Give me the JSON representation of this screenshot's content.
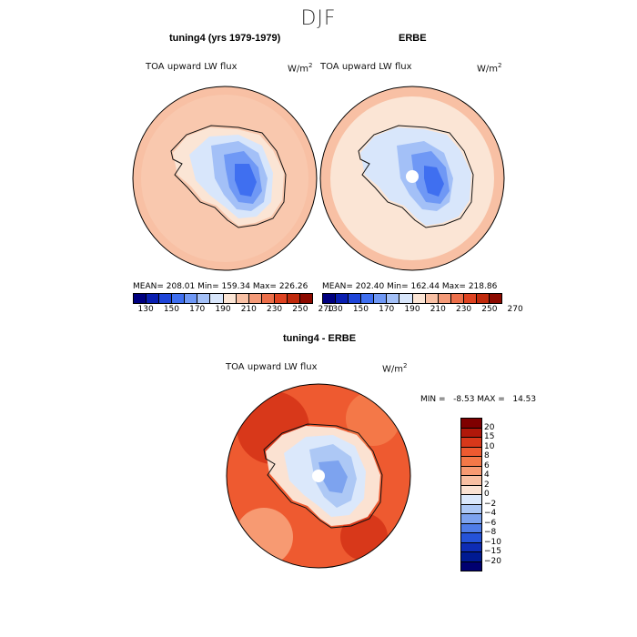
{
  "figure": {
    "title": "DJF"
  },
  "panels": {
    "left": {
      "title": "tuning4 (yrs 1979-1979)",
      "variable": "TOA upward LW flux",
      "units": "W/m",
      "units_exp": "2",
      "stats": "MEAN= 208.01  Min= 159.34  Max= 226.26"
    },
    "right": {
      "title": "ERBE",
      "variable": "TOA upward LW flux",
      "units": "W/m",
      "units_exp": "2",
      "stats": "MEAN= 202.40  Min= 162.44  Max= 218.86"
    },
    "diff": {
      "title": "tuning4 - ERBE",
      "variable": "TOA upward LW flux",
      "units": "W/m",
      "units_exp": "2",
      "stats": "MIN =   -8.53 MAX =   14.53"
    }
  },
  "colorbars": {
    "abs": {
      "ticks": [
        "130",
        "150",
        "170",
        "190",
        "210",
        "230",
        "250",
        "270"
      ],
      "colors": [
        "#00007f",
        "#0a1fb0",
        "#1f45d8",
        "#3f6ff0",
        "#6f98f5",
        "#a3c0f7",
        "#d8e6fb",
        "#fbe5d5",
        "#f8c0a4",
        "#f49a78",
        "#ec6f4a",
        "#de4321",
        "#c02a0c",
        "#8c0a00"
      ]
    },
    "diff": {
      "ticks": [
        "20",
        "15",
        "10",
        "8",
        "6",
        "4",
        "2",
        "0",
        "−2",
        "−4",
        "−6",
        "−8",
        "−10",
        "−15",
        "−20"
      ],
      "colors": [
        "#7f0000",
        "#b0180a",
        "#d8381a",
        "#ee5a30",
        "#f47848",
        "#f79a72",
        "#f8bfa2",
        "#fbe2d2",
        "#dbe8fb",
        "#adc8f5",
        "#7da3ef",
        "#4f7de8",
        "#2553d8",
        "#0e2cb4",
        "#001a92",
        "#000070"
      ]
    }
  }
}
